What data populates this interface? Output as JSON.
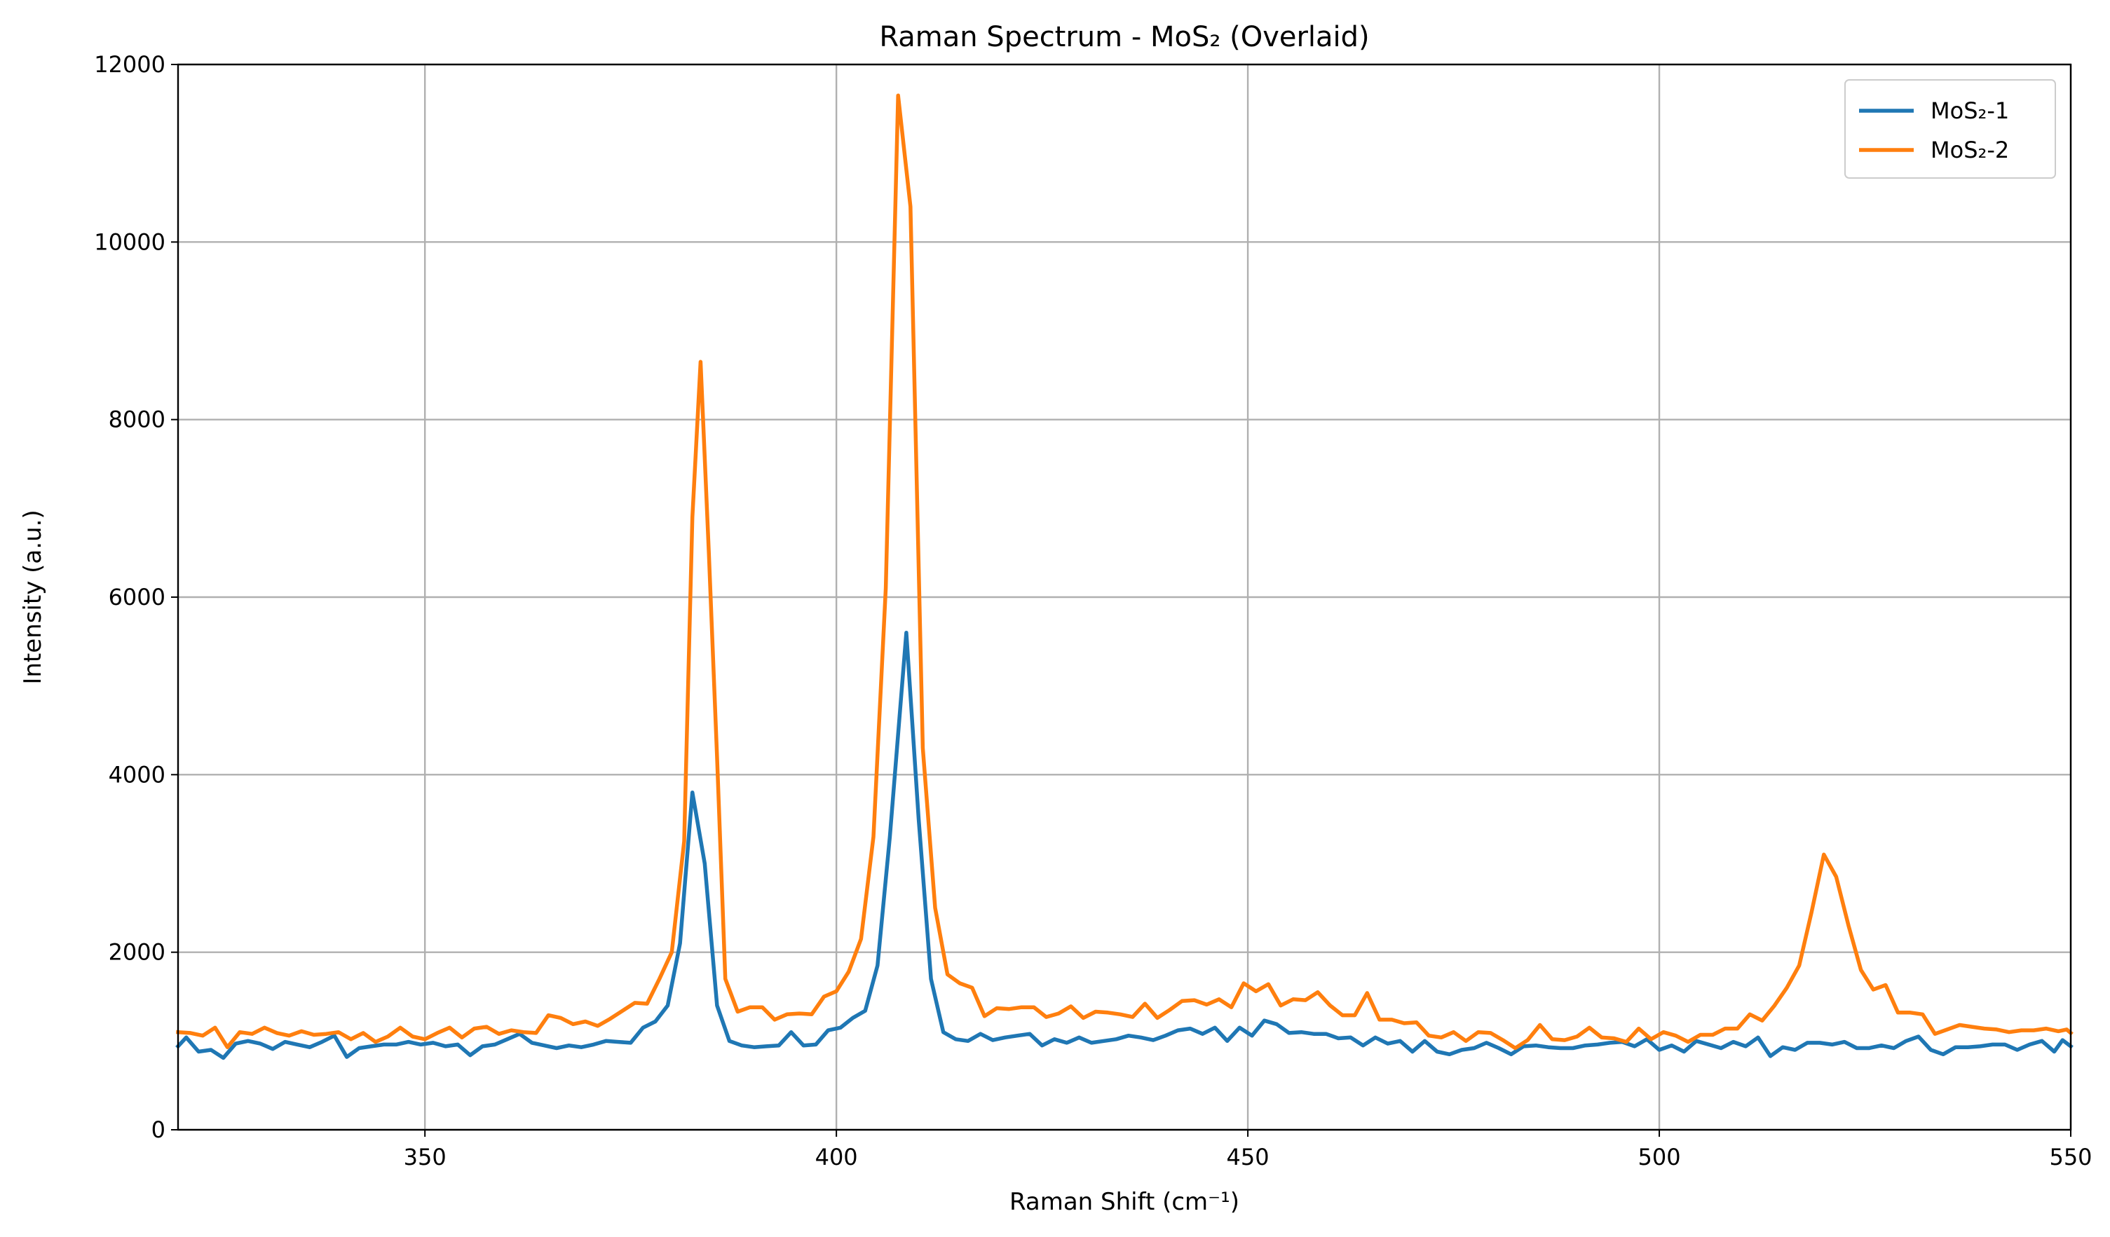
{
  "chart_data": {
    "type": "line",
    "title": "Raman Spectrum - MoS₂ (Overlaid)",
    "xlabel": "Raman Shift (cm⁻¹)",
    "ylabel": "Intensity (a.u.)",
    "xlim": [
      320,
      550
    ],
    "ylim": [
      0,
      12000
    ],
    "xticks": [
      350,
      400,
      450,
      500,
      550
    ],
    "yticks": [
      0,
      2000,
      4000,
      6000,
      8000,
      10000,
      12000
    ],
    "grid": true,
    "legend_position": "top-right",
    "series": [
      {
        "name": "MoS₂-1",
        "color": "#1f77b4",
        "points": [
          [
            320,
            940
          ],
          [
            321,
            1040
          ],
          [
            322.5,
            880
          ],
          [
            324,
            900
          ],
          [
            325.5,
            810
          ],
          [
            327,
            970
          ],
          [
            328.5,
            1000
          ],
          [
            330,
            970
          ],
          [
            331.5,
            910
          ],
          [
            333,
            990
          ],
          [
            334.5,
            960
          ],
          [
            336,
            930
          ],
          [
            337.5,
            990
          ],
          [
            339,
            1060
          ],
          [
            340.5,
            820
          ],
          [
            342,
            920
          ],
          [
            343.5,
            940
          ],
          [
            345,
            960
          ],
          [
            346.5,
            960
          ],
          [
            348,
            990
          ],
          [
            349.5,
            960
          ],
          [
            351,
            980
          ],
          [
            352.5,
            940
          ],
          [
            354,
            960
          ],
          [
            355.5,
            840
          ],
          [
            357,
            940
          ],
          [
            358.5,
            960
          ],
          [
            360,
            1020
          ],
          [
            361.5,
            1080
          ],
          [
            363,
            980
          ],
          [
            364.5,
            950
          ],
          [
            366,
            920
          ],
          [
            367.5,
            950
          ],
          [
            369,
            930
          ],
          [
            370.5,
            960
          ],
          [
            372,
            1000
          ],
          [
            373.5,
            990
          ],
          [
            375,
            980
          ],
          [
            376.5,
            1150
          ],
          [
            378,
            1220
          ],
          [
            379.5,
            1400
          ],
          [
            381,
            2100
          ],
          [
            382.5,
            3800
          ],
          [
            384,
            3000
          ],
          [
            385.5,
            1400
          ],
          [
            387,
            1000
          ],
          [
            388.5,
            950
          ],
          [
            390,
            930
          ],
          [
            391.5,
            940
          ],
          [
            393,
            950
          ],
          [
            394.5,
            1100
          ],
          [
            396,
            950
          ],
          [
            397.5,
            960
          ],
          [
            399,
            1120
          ],
          [
            400.5,
            1150
          ],
          [
            402,
            1260
          ],
          [
            403.5,
            1340
          ],
          [
            405,
            1850
          ],
          [
            406.5,
            3300
          ],
          [
            408.5,
            5600
          ],
          [
            410,
            3500
          ],
          [
            411.5,
            1700
          ],
          [
            413,
            1100
          ],
          [
            414.5,
            1020
          ],
          [
            416,
            1000
          ],
          [
            417.5,
            1080
          ],
          [
            419,
            1010
          ],
          [
            420.5,
            1040
          ],
          [
            422,
            1060
          ],
          [
            423.5,
            1080
          ],
          [
            425,
            950
          ],
          [
            426.5,
            1020
          ],
          [
            428,
            980
          ],
          [
            429.5,
            1040
          ],
          [
            431,
            980
          ],
          [
            432.5,
            1000
          ],
          [
            434,
            1020
          ],
          [
            435.5,
            1060
          ],
          [
            437,
            1040
          ],
          [
            438.5,
            1010
          ],
          [
            440,
            1060
          ],
          [
            441.5,
            1120
          ],
          [
            443,
            1140
          ],
          [
            444.5,
            1080
          ],
          [
            446,
            1150
          ],
          [
            447.5,
            1000
          ],
          [
            449,
            1150
          ],
          [
            450.5,
            1060
          ],
          [
            452,
            1230
          ],
          [
            453.5,
            1190
          ],
          [
            455,
            1090
          ],
          [
            456.5,
            1100
          ],
          [
            458,
            1080
          ],
          [
            459.5,
            1080
          ],
          [
            461,
            1030
          ],
          [
            462.5,
            1040
          ],
          [
            464,
            950
          ],
          [
            465.5,
            1040
          ],
          [
            467,
            970
          ],
          [
            468.5,
            1000
          ],
          [
            470,
            880
          ],
          [
            471.5,
            1000
          ],
          [
            473,
            880
          ],
          [
            474.5,
            850
          ],
          [
            476,
            900
          ],
          [
            477.5,
            920
          ],
          [
            479,
            980
          ],
          [
            480.5,
            920
          ],
          [
            482,
            850
          ],
          [
            483.5,
            940
          ],
          [
            485,
            950
          ],
          [
            486.5,
            930
          ],
          [
            488,
            920
          ],
          [
            489.5,
            920
          ],
          [
            491,
            950
          ],
          [
            492.5,
            960
          ],
          [
            494,
            980
          ],
          [
            495.5,
            990
          ],
          [
            497,
            940
          ],
          [
            498.5,
            1020
          ],
          [
            500,
            900
          ],
          [
            501.5,
            950
          ],
          [
            503,
            880
          ],
          [
            504.5,
            1000
          ],
          [
            506,
            960
          ],
          [
            507.5,
            920
          ],
          [
            509,
            990
          ],
          [
            510.5,
            940
          ],
          [
            512,
            1040
          ],
          [
            513.5,
            830
          ],
          [
            515,
            930
          ],
          [
            516.5,
            900
          ],
          [
            518,
            980
          ],
          [
            519.5,
            980
          ],
          [
            521,
            960
          ],
          [
            522.5,
            990
          ],
          [
            524,
            920
          ],
          [
            525.5,
            920
          ],
          [
            527,
            950
          ],
          [
            528.5,
            920
          ],
          [
            530,
            1000
          ],
          [
            531.5,
            1050
          ],
          [
            533,
            900
          ],
          [
            534.5,
            850
          ],
          [
            536,
            930
          ],
          [
            537.5,
            930
          ],
          [
            539,
            940
          ],
          [
            540.5,
            960
          ],
          [
            542,
            960
          ],
          [
            543.5,
            900
          ],
          [
            545,
            960
          ],
          [
            546.5,
            1000
          ],
          [
            548,
            880
          ],
          [
            549,
            1010
          ],
          [
            550,
            940
          ]
        ]
      },
      {
        "name": "MoS₂-2",
        "color": "#ff7f0e",
        "points": [
          [
            320,
            1100
          ],
          [
            321.5,
            1090
          ],
          [
            323,
            1060
          ],
          [
            324.5,
            1150
          ],
          [
            326,
            930
          ],
          [
            327.5,
            1100
          ],
          [
            329,
            1080
          ],
          [
            330.5,
            1150
          ],
          [
            332,
            1090
          ],
          [
            333.5,
            1060
          ],
          [
            335,
            1110
          ],
          [
            336.5,
            1070
          ],
          [
            338,
            1080
          ],
          [
            339.5,
            1100
          ],
          [
            341,
            1020
          ],
          [
            342.5,
            1090
          ],
          [
            344,
            990
          ],
          [
            345.5,
            1050
          ],
          [
            347,
            1150
          ],
          [
            348.5,
            1050
          ],
          [
            350,
            1020
          ],
          [
            351.5,
            1090
          ],
          [
            353,
            1150
          ],
          [
            354.5,
            1040
          ],
          [
            356,
            1140
          ],
          [
            357.5,
            1160
          ],
          [
            359,
            1080
          ],
          [
            360.5,
            1120
          ],
          [
            362,
            1100
          ],
          [
            363.5,
            1090
          ],
          [
            365,
            1290
          ],
          [
            366.5,
            1260
          ],
          [
            368,
            1190
          ],
          [
            369.5,
            1220
          ],
          [
            371,
            1170
          ],
          [
            372.5,
            1250
          ],
          [
            374,
            1340
          ],
          [
            375.5,
            1430
          ],
          [
            377,
            1420
          ],
          [
            378.5,
            1700
          ],
          [
            380,
            2000
          ],
          [
            381.5,
            3250
          ],
          [
            382.5,
            6900
          ],
          [
            383.5,
            8650
          ],
          [
            384.5,
            6500
          ],
          [
            385.5,
            4200
          ],
          [
            386.5,
            1700
          ],
          [
            388,
            1330
          ],
          [
            389.5,
            1380
          ],
          [
            391,
            1380
          ],
          [
            392.5,
            1240
          ],
          [
            394,
            1300
          ],
          [
            395.5,
            1310
          ],
          [
            397,
            1300
          ],
          [
            398.5,
            1500
          ],
          [
            400,
            1560
          ],
          [
            401.5,
            1780
          ],
          [
            403,
            2150
          ],
          [
            404.5,
            3300
          ],
          [
            406,
            6100
          ],
          [
            407.5,
            11650
          ],
          [
            409,
            10400
          ],
          [
            410.5,
            4300
          ],
          [
            412,
            2500
          ],
          [
            413.5,
            1750
          ],
          [
            415,
            1650
          ],
          [
            416.5,
            1600
          ],
          [
            418,
            1280
          ],
          [
            419.5,
            1370
          ],
          [
            421,
            1360
          ],
          [
            422.5,
            1380
          ],
          [
            424,
            1380
          ],
          [
            425.5,
            1270
          ],
          [
            427,
            1310
          ],
          [
            428.5,
            1390
          ],
          [
            430,
            1260
          ],
          [
            431.5,
            1330
          ],
          [
            433,
            1320
          ],
          [
            434.5,
            1300
          ],
          [
            436,
            1270
          ],
          [
            437.5,
            1420
          ],
          [
            439,
            1260
          ],
          [
            440.5,
            1350
          ],
          [
            442,
            1450
          ],
          [
            443.5,
            1460
          ],
          [
            445,
            1410
          ],
          [
            446.5,
            1470
          ],
          [
            448,
            1380
          ],
          [
            449.5,
            1650
          ],
          [
            451,
            1560
          ],
          [
            452.5,
            1640
          ],
          [
            454,
            1400
          ],
          [
            455.5,
            1470
          ],
          [
            457,
            1460
          ],
          [
            458.5,
            1550
          ],
          [
            460,
            1400
          ],
          [
            461.5,
            1290
          ],
          [
            463,
            1290
          ],
          [
            464.5,
            1540
          ],
          [
            466,
            1240
          ],
          [
            467.5,
            1240
          ],
          [
            469,
            1200
          ],
          [
            470.5,
            1210
          ],
          [
            472,
            1060
          ],
          [
            473.5,
            1040
          ],
          [
            475,
            1100
          ],
          [
            476.5,
            1000
          ],
          [
            478,
            1100
          ],
          [
            479.5,
            1090
          ],
          [
            481,
            1010
          ],
          [
            482.5,
            920
          ],
          [
            484,
            1010
          ],
          [
            485.5,
            1180
          ],
          [
            487,
            1020
          ],
          [
            488.5,
            1010
          ],
          [
            490,
            1050
          ],
          [
            491.5,
            1150
          ],
          [
            493,
            1040
          ],
          [
            494.5,
            1030
          ],
          [
            496,
            990
          ],
          [
            497.5,
            1140
          ],
          [
            499,
            1020
          ],
          [
            500.5,
            1100
          ],
          [
            502,
            1060
          ],
          [
            503.5,
            990
          ],
          [
            505,
            1070
          ],
          [
            506.5,
            1070
          ],
          [
            508,
            1140
          ],
          [
            509.5,
            1140
          ],
          [
            511,
            1300
          ],
          [
            512.5,
            1230
          ],
          [
            514,
            1400
          ],
          [
            515.5,
            1600
          ],
          [
            517,
            1850
          ],
          [
            518.5,
            2450
          ],
          [
            520,
            3100
          ],
          [
            521.5,
            2850
          ],
          [
            523,
            2300
          ],
          [
            524.5,
            1800
          ],
          [
            526,
            1580
          ],
          [
            527.5,
            1630
          ],
          [
            529,
            1320
          ],
          [
            530.5,
            1320
          ],
          [
            532,
            1300
          ],
          [
            533.5,
            1080
          ],
          [
            535,
            1130
          ],
          [
            536.5,
            1180
          ],
          [
            538,
            1160
          ],
          [
            539.5,
            1140
          ],
          [
            541,
            1130
          ],
          [
            542.5,
            1100
          ],
          [
            544,
            1120
          ],
          [
            545.5,
            1120
          ],
          [
            547,
            1140
          ],
          [
            548.5,
            1110
          ],
          [
            549.5,
            1130
          ],
          [
            550,
            1090
          ]
        ]
      }
    ]
  }
}
